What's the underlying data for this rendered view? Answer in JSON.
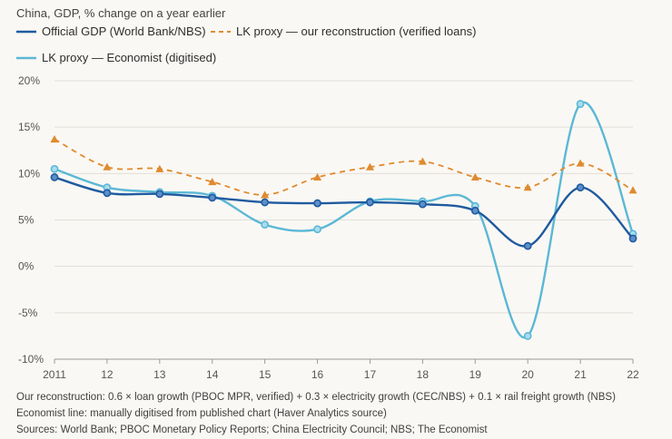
{
  "colors": {
    "official": "#1f5aa0",
    "lk_ours": "#e08a2e",
    "lk_economist": "#5bb8d6",
    "grid": "#e3e0da",
    "axis_text": "#555555"
  },
  "chart_data": {
    "type": "line",
    "title": "China, GDP, % change on a year earlier",
    "x": [
      "2011",
      "12",
      "13",
      "14",
      "15",
      "16",
      "17",
      "18",
      "19",
      "20",
      "21",
      "22"
    ],
    "ylim": [
      -10,
      20
    ],
    "yticks": [
      20,
      15,
      10,
      5,
      0,
      -5,
      -10
    ],
    "ytick_labels": [
      "20%",
      "15%",
      "10%",
      "5%",
      "0%",
      "-5%",
      "-10%"
    ],
    "grid": true,
    "legend_position": "top",
    "series": [
      {
        "name": "Official GDP (World Bank/NBS)",
        "style": "solid",
        "marker": "circle",
        "color": "#1f5aa0",
        "values": [
          9.6,
          7.9,
          7.8,
          7.4,
          6.9,
          6.8,
          6.9,
          6.7,
          6.0,
          2.2,
          8.5,
          3.0
        ]
      },
      {
        "name": "LK proxy — our reconstruction (verified loans)",
        "style": "dashed",
        "marker": "triangle",
        "color": "#e08a2e",
        "values": [
          13.7,
          10.7,
          10.5,
          9.1,
          7.7,
          9.6,
          10.7,
          11.3,
          9.6,
          8.5,
          11.1,
          8.2
        ]
      },
      {
        "name": "LK proxy — Economist (digitised)",
        "style": "solid",
        "marker": "circle",
        "color": "#5bb8d6",
        "values": [
          10.5,
          8.5,
          8.0,
          7.6,
          4.5,
          4.0,
          7.0,
          7.0,
          6.5,
          -7.5,
          17.5,
          3.5
        ]
      }
    ]
  },
  "footnotes": [
    "Our reconstruction: 0.6 × loan growth (PBOC MPR, verified) + 0.3 × electricity growth (CEC/NBS) + 0.1 × rail freight growth (NBS)",
    "Economist line: manually digitised from published chart (Haver Analytics source)",
    "Sources: World Bank; PBOC Monetary Policy Reports; China Electricity Council; NBS; The Economist"
  ]
}
